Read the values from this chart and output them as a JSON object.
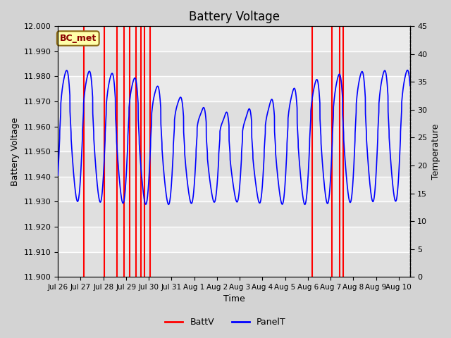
{
  "title": "Battery Voltage",
  "xlabel": "Time",
  "ylabel_left": "Battery Voltage",
  "ylabel_right": "Temperature",
  "ylim_left": [
    11.9,
    12.0
  ],
  "ylim_right": [
    0,
    45
  ],
  "fig_bg_color": "#d3d3d3",
  "plot_bg_color": "#e8e8e8",
  "annotation_text": "BC_met",
  "annotation_bg": "#ffffaa",
  "annotation_border": "#8B6914",
  "x_tick_labels": [
    "Jul 26",
    "Jul 27",
    "Jul 28",
    "Jul 29",
    "Jul 30",
    "Jul 31",
    "Aug 1",
    "Aug 2",
    "Aug 3",
    "Aug 4",
    "Aug 5",
    "Aug 6",
    "Aug 7",
    "Aug 8",
    "Aug 9",
    "Aug 10"
  ],
  "num_days": 15.5,
  "red_line_positions": [
    1.15,
    2.05,
    2.6,
    2.9,
    3.15,
    3.45,
    3.65,
    3.8,
    4.05,
    11.2,
    12.05,
    12.4,
    12.55
  ]
}
